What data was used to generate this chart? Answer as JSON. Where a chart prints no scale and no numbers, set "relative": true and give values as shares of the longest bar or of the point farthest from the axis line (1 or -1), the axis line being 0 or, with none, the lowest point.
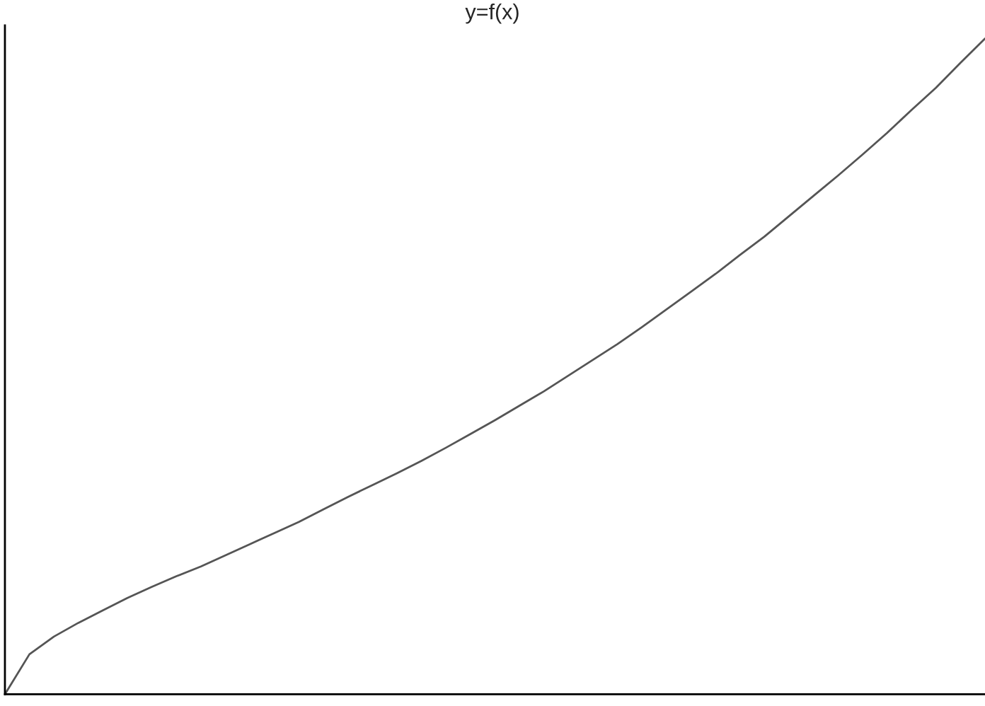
{
  "chart_data": {
    "type": "line",
    "title": "y=f(x)",
    "relative": true,
    "grid": false,
    "legend": false,
    "marker": "none",
    "line_style": "solid",
    "categories": [
      null,
      null,
      null,
      null,
      null,
      null,
      null,
      null,
      null,
      null,
      null,
      null,
      null,
      null,
      null,
      null,
      null,
      null,
      null,
      null,
      null,
      null,
      null,
      null,
      null,
      null,
      null,
      null,
      null,
      null,
      null,
      null,
      null,
      null,
      null,
      null,
      null,
      null,
      null,
      null,
      null
    ],
    "series": [
      {
        "color": "#555555",
        "values": [
          0,
          0.061,
          0.088,
          0.109,
          0.128,
          0.147,
          0.164,
          0.18,
          0.195,
          0.212,
          0.229,
          0.246,
          0.263,
          0.282,
          0.301,
          0.319,
          0.337,
          0.356,
          0.376,
          0.397,
          0.418,
          0.44,
          0.462,
          0.486,
          0.51,
          0.534,
          0.56,
          0.587,
          0.614,
          0.641,
          0.67,
          0.698,
          0.729,
          0.76,
          0.791,
          0.823,
          0.856,
          0.891,
          0.925,
          0.963,
          1.0
        ]
      }
    ]
  }
}
